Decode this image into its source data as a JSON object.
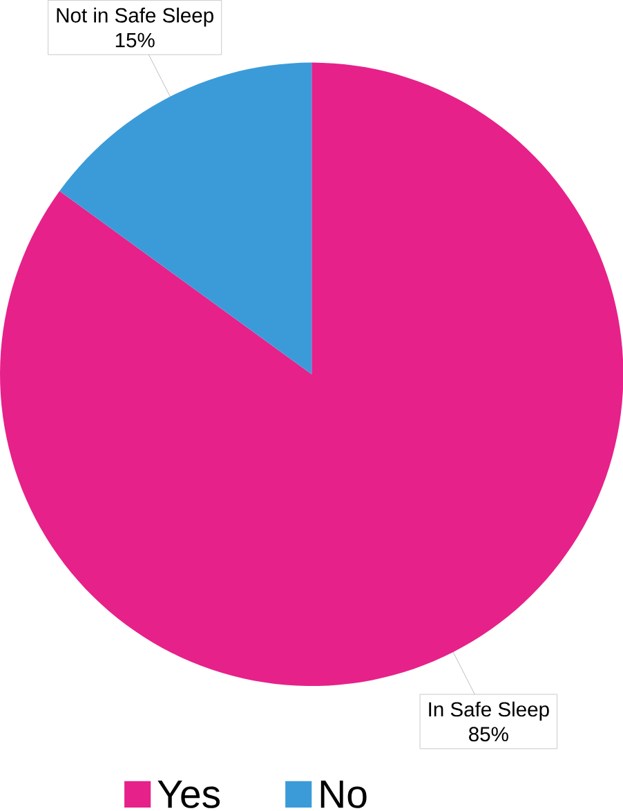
{
  "chart_data": {
    "type": "pie",
    "categories": [
      "Yes",
      "No"
    ],
    "values": [
      85,
      15
    ],
    "colors": [
      "#e6218a",
      "#3b9bd8"
    ],
    "value_labels": [
      "85%",
      "15%"
    ],
    "annotations": [
      "In Safe Sleep",
      "Not in Safe Sleep"
    ],
    "legend": "bottom"
  }
}
